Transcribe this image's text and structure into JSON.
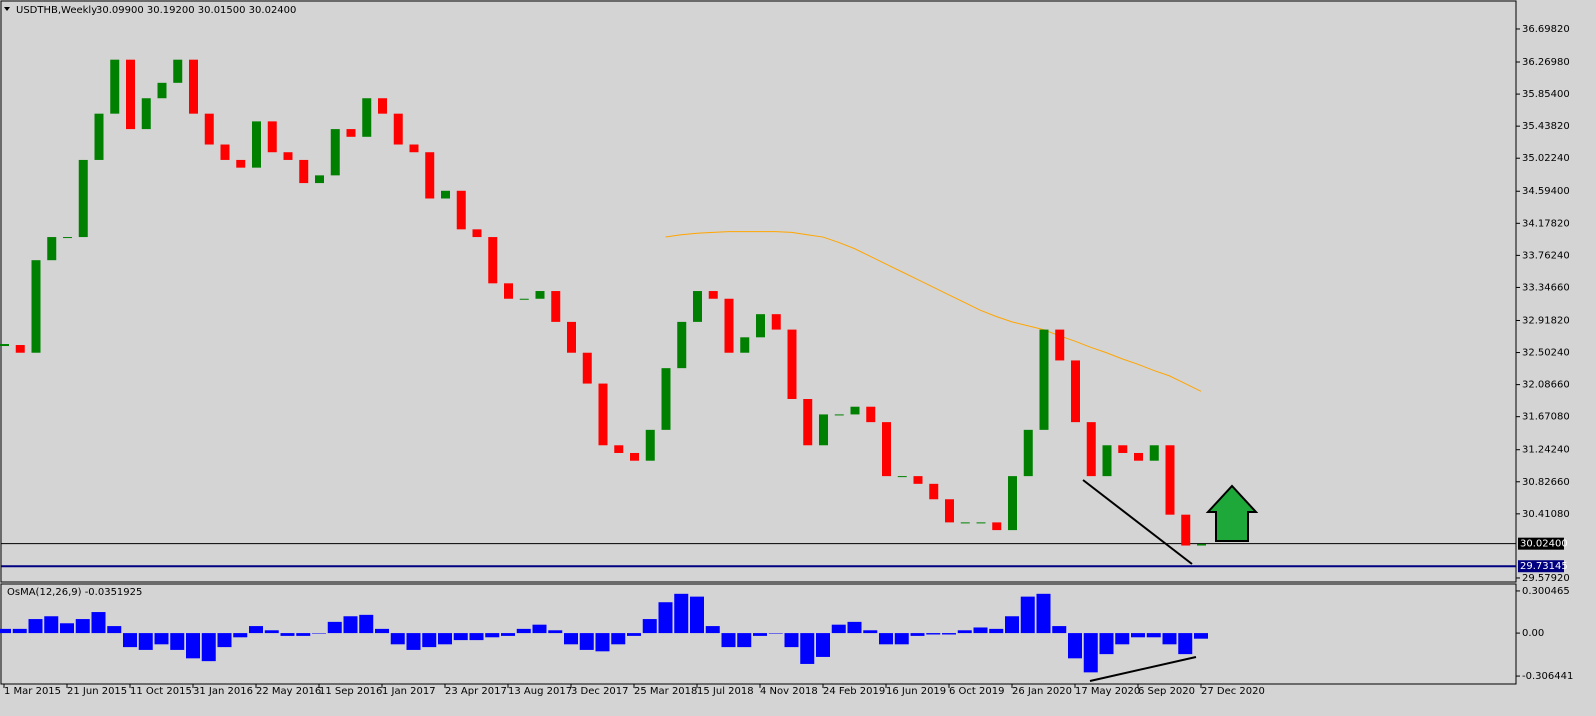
{
  "chart_data": {
    "type": "candlestick",
    "title": "USDTHB,Weekly",
    "quote": "30.09900 30.19200 30.01500 30.02400",
    "categories": [
      "1 Mar 2015",
      null,
      null,
      null,
      "21 Jun 2015",
      null,
      null,
      null,
      "11 Oct 2015",
      null,
      null,
      null,
      "31 Jan 2016",
      null,
      null,
      null,
      "22 May 2016",
      null,
      null,
      null,
      "11 Sep 2016",
      null,
      null,
      null,
      "1 Jan 2017",
      null,
      null,
      null,
      "23 Apr 2017",
      null,
      null,
      null,
      "13 Aug 2017",
      null,
      null,
      null,
      "3 Dec 2017",
      null,
      null,
      null,
      "25 Mar 2018",
      null,
      null,
      null,
      "15 Jul 2018",
      null,
      null,
      null,
      "4 Nov 2018",
      null,
      null,
      null,
      "24 Feb 2019",
      null,
      null,
      null,
      "16 Jun 2019",
      null,
      null,
      null,
      "6 Oct 2019",
      null,
      null,
      null,
      "26 Jan 2020",
      null,
      null,
      null,
      "17 May 2020",
      null,
      null,
      null,
      "6 Sep 2020",
      null,
      null,
      null,
      "27 Dec 2020"
    ],
    "close": [
      32.6,
      32.5,
      33.7,
      34.0,
      34.0,
      35.0,
      35.6,
      36.3,
      35.4,
      35.8,
      36.0,
      36.3,
      35.6,
      35.2,
      35.0,
      34.9,
      35.5,
      35.1,
      35.0,
      34.7,
      34.8,
      35.4,
      35.3,
      35.8,
      35.6,
      35.2,
      35.1,
      34.5,
      34.6,
      34.1,
      34.0,
      33.4,
      33.2,
      33.2,
      33.3,
      32.9,
      32.5,
      32.1,
      31.3,
      31.2,
      31.1,
      31.5,
      32.3,
      32.9,
      33.3,
      33.2,
      32.5,
      32.7,
      33.0,
      32.8,
      31.9,
      31.3,
      31.7,
      31.7,
      31.8,
      31.6,
      30.9,
      30.9,
      30.8,
      30.6,
      30.3,
      30.3,
      30.3,
      30.2,
      30.9,
      31.5,
      32.8,
      32.4,
      31.6,
      30.9,
      31.3,
      31.2,
      31.1,
      31.3,
      30.4,
      30.0,
      30.02
    ],
    "up_color": "#008000",
    "down_color": "#ff0000",
    "ylim": [
      29.527,
      37.061
    ],
    "yticks": [
      {
        "value": 36.6982,
        "label": "36.69820"
      },
      {
        "value": 36.2698,
        "label": "36.26980"
      },
      {
        "value": 35.854,
        "label": "35.85400"
      },
      {
        "value": 35.4382,
        "label": "35.43820"
      },
      {
        "value": 35.0224,
        "label": "35.02240"
      },
      {
        "value": 34.594,
        "label": "34.59400"
      },
      {
        "value": 34.1782,
        "label": "34.17820"
      },
      {
        "value": 33.7624,
        "label": "33.76240"
      },
      {
        "value": 33.3466,
        "label": "33.34660"
      },
      {
        "value": 32.9182,
        "label": "32.91820"
      },
      {
        "value": 32.5024,
        "label": "32.50240"
      },
      {
        "value": 32.0866,
        "label": "32.08660"
      },
      {
        "value": 31.6708,
        "label": "31.67080"
      },
      {
        "value": 31.2424,
        "label": "31.24240"
      },
      {
        "value": 30.8266,
        "label": "30.82660"
      },
      {
        "value": 30.4108,
        "label": "30.41080"
      },
      {
        "value": 29.5792,
        "label": "29.57920"
      }
    ],
    "levels": [
      {
        "value": 30.024,
        "label": "30.02400",
        "color": "#000000"
      },
      {
        "value": 29.73145,
        "label": "29.73145",
        "color": "#000080"
      }
    ],
    "ma": {
      "color": "#ffa500",
      "values": [
        null,
        null,
        null,
        null,
        null,
        null,
        null,
        null,
        null,
        null,
        null,
        null,
        null,
        null,
        null,
        null,
        null,
        null,
        null,
        null,
        null,
        null,
        null,
        null,
        null,
        null,
        null,
        null,
        null,
        null,
        null,
        null,
        null,
        null,
        null,
        null,
        null,
        null,
        null,
        null,
        null,
        null,
        34.0,
        34.03,
        34.05,
        34.06,
        34.07,
        34.07,
        34.07,
        34.07,
        34.06,
        34.03,
        34.0,
        33.93,
        33.85,
        33.75,
        33.65,
        33.55,
        33.45,
        33.35,
        33.25,
        33.15,
        33.05,
        32.97,
        32.9,
        32.85,
        32.8,
        32.72,
        32.65,
        32.57,
        32.5,
        32.42,
        32.35,
        32.27,
        32.2,
        32.1,
        32.0
      ]
    },
    "indicator": {
      "type": "bar",
      "title": "OsMA(12,26,9) -0.0351925",
      "color": "#0000ff",
      "values": [
        0.03,
        0.03,
        0.1,
        0.12,
        0.07,
        0.1,
        0.15,
        0.05,
        -0.1,
        -0.12,
        -0.08,
        -0.12,
        -0.18,
        -0.2,
        -0.1,
        -0.03,
        0.05,
        0.02,
        -0.02,
        -0.02,
        0.0,
        0.08,
        0.12,
        0.13,
        0.03,
        -0.08,
        -0.12,
        -0.1,
        -0.08,
        -0.05,
        -0.05,
        -0.03,
        -0.02,
        0.03,
        0.06,
        0.02,
        -0.08,
        -0.12,
        -0.13,
        -0.08,
        -0.02,
        0.1,
        0.22,
        0.28,
        0.26,
        0.05,
        -0.1,
        -0.1,
        -0.02,
        0.0,
        -0.1,
        -0.22,
        -0.17,
        0.06,
        0.08,
        0.02,
        -0.08,
        -0.08,
        -0.02,
        -0.01,
        -0.01,
        0.02,
        0.04,
        0.03,
        0.12,
        0.26,
        0.28,
        0.05,
        -0.18,
        -0.28,
        -0.15,
        -0.08,
        -0.03,
        -0.03,
        -0.08,
        -0.15,
        -0.04
      ],
      "ylim": [
        -0.363,
        0.35
      ],
      "yticks": [
        0.300465,
        {
          "value": 0,
          "label": "0.00"
        },
        -0.306441
      ]
    }
  }
}
